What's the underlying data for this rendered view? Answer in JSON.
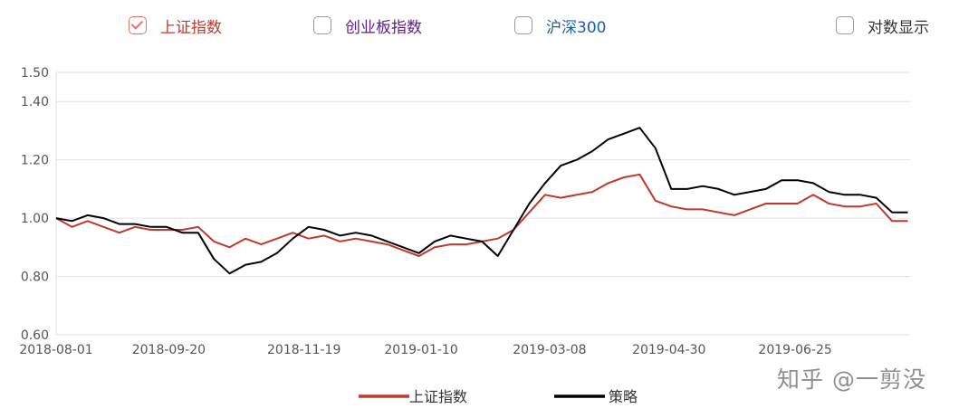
{
  "toggles": [
    {
      "label": "上证指数",
      "checked": true,
      "color": "#c0392b"
    },
    {
      "label": "创业板指数",
      "checked": false,
      "color": "#5b1f87"
    },
    {
      "label": "沪深300",
      "checked": false,
      "color": "#1f5fa8"
    },
    {
      "label": "对数显示",
      "checked": false,
      "color": "#333333"
    }
  ],
  "watermark": "知乎 @一剪没",
  "chart_data": {
    "type": "line",
    "title": "",
    "xlabel": "",
    "ylabel": "",
    "x_ticks": [
      "2018-08-01",
      "2018-09-20",
      "2018-11-19",
      "2019-01-10",
      "2019-03-08",
      "2019-04-30",
      "2019-06-25"
    ],
    "y_ticks": [
      "0.60",
      "0.80",
      "1.00",
      "1.20",
      "1.40",
      "1.50"
    ],
    "ylim": [
      0.6,
      1.5
    ],
    "grid": true,
    "legend_position": "bottom",
    "series": [
      {
        "name": "上证指数",
        "color": "#c0392b",
        "points": [
          [
            "2018-08-01",
            1.0
          ],
          [
            "2018-08-08",
            0.97
          ],
          [
            "2018-08-15",
            0.99
          ],
          [
            "2018-08-22",
            0.97
          ],
          [
            "2018-08-29",
            0.95
          ],
          [
            "2018-09-05",
            0.97
          ],
          [
            "2018-09-12",
            0.96
          ],
          [
            "2018-09-19",
            0.96
          ],
          [
            "2018-09-26",
            0.96
          ],
          [
            "2018-10-03",
            0.97
          ],
          [
            "2018-10-10",
            0.92
          ],
          [
            "2018-10-17",
            0.9
          ],
          [
            "2018-10-24",
            0.93
          ],
          [
            "2018-10-31",
            0.91
          ],
          [
            "2018-11-07",
            0.93
          ],
          [
            "2018-11-14",
            0.95
          ],
          [
            "2018-11-21",
            0.93
          ],
          [
            "2018-11-28",
            0.94
          ],
          [
            "2018-12-05",
            0.92
          ],
          [
            "2018-12-12",
            0.93
          ],
          [
            "2018-12-19",
            0.92
          ],
          [
            "2018-12-26",
            0.91
          ],
          [
            "2019-01-02",
            0.89
          ],
          [
            "2019-01-09",
            0.87
          ],
          [
            "2019-01-16",
            0.9
          ],
          [
            "2019-01-23",
            0.91
          ],
          [
            "2019-01-30",
            0.91
          ],
          [
            "2019-02-06",
            0.92
          ],
          [
            "2019-02-13",
            0.93
          ],
          [
            "2019-02-20",
            0.96
          ],
          [
            "2019-02-27",
            1.02
          ],
          [
            "2019-03-06",
            1.08
          ],
          [
            "2019-03-13",
            1.07
          ],
          [
            "2019-03-20",
            1.08
          ],
          [
            "2019-03-27",
            1.09
          ],
          [
            "2019-04-03",
            1.12
          ],
          [
            "2019-04-10",
            1.14
          ],
          [
            "2019-04-17",
            1.15
          ],
          [
            "2019-04-24",
            1.06
          ],
          [
            "2019-05-01",
            1.04
          ],
          [
            "2019-05-08",
            1.03
          ],
          [
            "2019-05-15",
            1.03
          ],
          [
            "2019-05-22",
            1.02
          ],
          [
            "2019-05-29",
            1.01
          ],
          [
            "2019-06-05",
            1.03
          ],
          [
            "2019-06-12",
            1.05
          ],
          [
            "2019-06-19",
            1.05
          ],
          [
            "2019-06-26",
            1.05
          ],
          [
            "2019-07-03",
            1.08
          ],
          [
            "2019-07-10",
            1.05
          ],
          [
            "2019-07-17",
            1.04
          ],
          [
            "2019-07-24",
            1.04
          ],
          [
            "2019-07-31",
            1.05
          ],
          [
            "2019-08-07",
            0.99
          ],
          [
            "2019-08-14",
            0.99
          ]
        ]
      },
      {
        "name": "策略",
        "color": "#000000",
        "points": [
          [
            "2018-08-01",
            1.0
          ],
          [
            "2018-08-08",
            0.99
          ],
          [
            "2018-08-15",
            1.01
          ],
          [
            "2018-08-22",
            1.0
          ],
          [
            "2018-08-29",
            0.98
          ],
          [
            "2018-09-05",
            0.98
          ],
          [
            "2018-09-12",
            0.97
          ],
          [
            "2018-09-19",
            0.97
          ],
          [
            "2018-09-26",
            0.95
          ],
          [
            "2018-10-03",
            0.95
          ],
          [
            "2018-10-10",
            0.86
          ],
          [
            "2018-10-17",
            0.81
          ],
          [
            "2018-10-24",
            0.84
          ],
          [
            "2018-10-31",
            0.85
          ],
          [
            "2018-11-07",
            0.88
          ],
          [
            "2018-11-14",
            0.93
          ],
          [
            "2018-11-21",
            0.97
          ],
          [
            "2018-11-28",
            0.96
          ],
          [
            "2018-12-05",
            0.94
          ],
          [
            "2018-12-12",
            0.95
          ],
          [
            "2018-12-19",
            0.94
          ],
          [
            "2018-12-26",
            0.92
          ],
          [
            "2019-01-02",
            0.9
          ],
          [
            "2019-01-09",
            0.88
          ],
          [
            "2019-01-16",
            0.92
          ],
          [
            "2019-01-23",
            0.94
          ],
          [
            "2019-01-30",
            0.93
          ],
          [
            "2019-02-06",
            0.92
          ],
          [
            "2019-02-13",
            0.87
          ],
          [
            "2019-02-20",
            0.96
          ],
          [
            "2019-02-27",
            1.05
          ],
          [
            "2019-03-06",
            1.12
          ],
          [
            "2019-03-13",
            1.18
          ],
          [
            "2019-03-20",
            1.2
          ],
          [
            "2019-03-27",
            1.23
          ],
          [
            "2019-04-03",
            1.27
          ],
          [
            "2019-04-10",
            1.29
          ],
          [
            "2019-04-17",
            1.31
          ],
          [
            "2019-04-24",
            1.24
          ],
          [
            "2019-05-01",
            1.1
          ],
          [
            "2019-05-08",
            1.1
          ],
          [
            "2019-05-15",
            1.11
          ],
          [
            "2019-05-22",
            1.1
          ],
          [
            "2019-05-29",
            1.08
          ],
          [
            "2019-06-05",
            1.09
          ],
          [
            "2019-06-12",
            1.1
          ],
          [
            "2019-06-19",
            1.13
          ],
          [
            "2019-06-26",
            1.13
          ],
          [
            "2019-07-03",
            1.12
          ],
          [
            "2019-07-10",
            1.09
          ],
          [
            "2019-07-17",
            1.08
          ],
          [
            "2019-07-24",
            1.08
          ],
          [
            "2019-07-31",
            1.07
          ],
          [
            "2019-08-07",
            1.02
          ],
          [
            "2019-08-14",
            1.02
          ]
        ]
      }
    ]
  }
}
